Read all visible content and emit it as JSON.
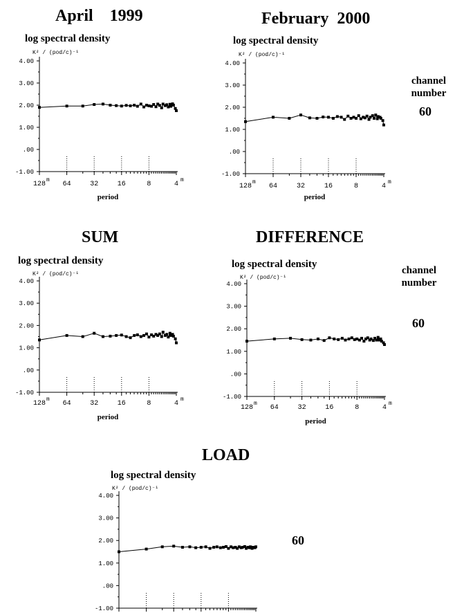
{
  "panels": [
    {
      "title": "April    1999",
      "ylabel": "log   spectral density",
      "unit_label": "K² / (pod/c)⁻¹",
      "xlabel": "period",
      "side_label": "",
      "channel": "",
      "chart_data": {
        "type": "scatter",
        "title": "April    1999",
        "ylabel": "log   spectral density",
        "xlabel": "period",
        "x_scale": "log2-reversed",
        "xlim": [
          128,
          4
        ],
        "ylim": [
          -1.0,
          4.0
        ],
        "yticks": [
          "4.00",
          "3.00",
          "2.00",
          "1.00",
          ".00",
          "-1.00"
        ],
        "xticks": [
          "128",
          "64",
          "32",
          "16",
          "8",
          "4"
        ],
        "x_unit": "m",
        "x": [
          128,
          64,
          42.7,
          32,
          25.6,
          21.3,
          18.3,
          16,
          14.2,
          12.8,
          11.6,
          10.7,
          9.8,
          9.1,
          8.5,
          8,
          7.5,
          7.1,
          6.7,
          6.4,
          6.1,
          5.8,
          5.6,
          5.3,
          5.1,
          4.9,
          4.7,
          4.6,
          4.4,
          4.3,
          4.1,
          4
        ],
        "y": [
          1.9,
          1.96,
          1.96,
          2.03,
          2.05,
          2.0,
          1.98,
          1.96,
          1.99,
          1.97,
          2.0,
          1.95,
          2.05,
          1.92,
          2.0,
          1.97,
          1.95,
          2.03,
          1.93,
          2.05,
          1.99,
          1.88,
          2.05,
          1.98,
          2.02,
          1.92,
          2.04,
          1.95,
          2.06,
          2.0,
          1.85,
          1.75
        ]
      }
    },
    {
      "title": "February  2000",
      "ylabel": "log   spectral density",
      "unit_label": "K² / (pod/c)⁻¹",
      "xlabel": "period",
      "side_label": "channel\nnumber",
      "channel": "60",
      "chart_data": {
        "type": "scatter",
        "title": "February  2000",
        "ylabel": "log   spectral density",
        "xlabel": "period",
        "x_scale": "log2-reversed",
        "xlim": [
          128,
          4
        ],
        "ylim": [
          -1.0,
          4.0
        ],
        "yticks": [
          "4.00",
          "3.00",
          "2.00",
          "1.00",
          ".00",
          "-1.00"
        ],
        "xticks": [
          "128",
          "64",
          "32",
          "16",
          "8",
          "4"
        ],
        "x_unit": "m",
        "x": [
          128,
          64,
          42.7,
          32,
          25.6,
          21.3,
          18.3,
          16,
          14.2,
          12.8,
          11.6,
          10.7,
          9.8,
          9.1,
          8.5,
          8,
          7.5,
          7.1,
          6.7,
          6.4,
          6.1,
          5.8,
          5.6,
          5.3,
          5.1,
          4.9,
          4.7,
          4.6,
          4.4,
          4.3,
          4.1,
          4
        ],
        "y": [
          1.35,
          1.55,
          1.5,
          1.65,
          1.52,
          1.5,
          1.56,
          1.55,
          1.5,
          1.58,
          1.55,
          1.45,
          1.6,
          1.5,
          1.55,
          1.5,
          1.62,
          1.48,
          1.55,
          1.52,
          1.6,
          1.45,
          1.55,
          1.62,
          1.5,
          1.65,
          1.48,
          1.58,
          1.55,
          1.5,
          1.4,
          1.2
        ]
      }
    },
    {
      "title": "SUM",
      "ylabel": "log   spectral density",
      "unit_label": "K² / (pod/c)⁻¹",
      "xlabel": "period",
      "side_label": "",
      "channel": "",
      "chart_data": {
        "type": "scatter",
        "title": "SUM",
        "ylabel": "log   spectral density",
        "xlabel": "period",
        "x_scale": "log2-reversed",
        "xlim": [
          128,
          4
        ],
        "ylim": [
          -1.0,
          4.0
        ],
        "yticks": [
          "4.00",
          "3.00",
          "2.00",
          "1.00",
          ".00",
          "-1.00"
        ],
        "xticks": [
          "128",
          "64",
          "32",
          "16",
          "8",
          "4"
        ],
        "x_unit": "m",
        "x": [
          128,
          64,
          42.7,
          32,
          25.6,
          21.3,
          18.3,
          16,
          14.2,
          12.8,
          11.6,
          10.7,
          9.8,
          9.1,
          8.5,
          8,
          7.5,
          7.1,
          6.7,
          6.4,
          6.1,
          5.8,
          5.6,
          5.3,
          5.1,
          4.9,
          4.7,
          4.6,
          4.4,
          4.3,
          4.1,
          4
        ],
        "y": [
          1.35,
          1.55,
          1.5,
          1.65,
          1.5,
          1.52,
          1.55,
          1.57,
          1.5,
          1.45,
          1.55,
          1.58,
          1.5,
          1.55,
          1.62,
          1.48,
          1.58,
          1.52,
          1.6,
          1.55,
          1.62,
          1.5,
          1.7,
          1.55,
          1.6,
          1.48,
          1.65,
          1.55,
          1.6,
          1.52,
          1.4,
          1.22
        ]
      }
    },
    {
      "title": "DIFFERENCE",
      "ylabel": "log   spectral density",
      "unit_label": "K² / (pod/c)⁻¹",
      "xlabel": "period",
      "side_label": "channel\nnumber",
      "channel": "60",
      "chart_data": {
        "type": "scatter",
        "title": "DIFFERENCE",
        "ylabel": "log   spectral density",
        "xlabel": "period",
        "x_scale": "log2-reversed",
        "xlim": [
          128,
          4
        ],
        "ylim": [
          -1.0,
          4.0
        ],
        "yticks": [
          "4.00",
          "3.00",
          "2.00",
          "1.00",
          ".00",
          "-1.00"
        ],
        "xticks": [
          "128",
          "64",
          "32",
          "16",
          "8",
          "4"
        ],
        "x_unit": "m",
        "x": [
          128,
          64,
          42.7,
          32,
          25.6,
          21.3,
          18.3,
          16,
          14.2,
          12.8,
          11.6,
          10.7,
          9.8,
          9.1,
          8.5,
          8,
          7.5,
          7.1,
          6.7,
          6.4,
          6.1,
          5.8,
          5.6,
          5.3,
          5.1,
          4.9,
          4.7,
          4.6,
          4.4,
          4.3,
          4.1,
          4
        ],
        "y": [
          1.45,
          1.55,
          1.58,
          1.52,
          1.5,
          1.55,
          1.48,
          1.6,
          1.55,
          1.52,
          1.58,
          1.5,
          1.55,
          1.6,
          1.52,
          1.55,
          1.5,
          1.58,
          1.45,
          1.55,
          1.6,
          1.5,
          1.55,
          1.48,
          1.58,
          1.5,
          1.62,
          1.5,
          1.55,
          1.45,
          1.38,
          1.3
        ]
      }
    },
    {
      "title": "LOAD",
      "ylabel": "log   spectral density",
      "unit_label": "K² / (pod/c)⁻¹",
      "xlabel": "",
      "side_label": "",
      "channel": "60",
      "chart_data": {
        "type": "scatter",
        "title": "LOAD",
        "ylabel": "log   spectral density",
        "xlabel": "",
        "x_scale": "log2-reversed",
        "xlim": [
          128,
          4
        ],
        "ylim": [
          -1.0,
          4.0
        ],
        "yticks": [
          "4.00",
          "3.00",
          "2.00",
          "1.00",
          ".00",
          "-1.00"
        ],
        "xticks": [],
        "x_unit": "m",
        "x": [
          128,
          64,
          42.7,
          32,
          25.6,
          21.3,
          18.3,
          16,
          14.2,
          12.8,
          11.6,
          10.7,
          9.8,
          9.1,
          8.5,
          8,
          7.5,
          7.1,
          6.7,
          6.4,
          6.1,
          5.8,
          5.6,
          5.3,
          5.1,
          4.9,
          4.7,
          4.6,
          4.4,
          4.3,
          4.1,
          4
        ],
        "y": [
          1.5,
          1.62,
          1.72,
          1.75,
          1.7,
          1.72,
          1.68,
          1.7,
          1.72,
          1.65,
          1.7,
          1.72,
          1.68,
          1.7,
          1.73,
          1.65,
          1.72,
          1.68,
          1.7,
          1.65,
          1.72,
          1.68,
          1.7,
          1.73,
          1.65,
          1.7,
          1.68,
          1.72,
          1.65,
          1.7,
          1.68,
          1.72
        ]
      }
    }
  ]
}
